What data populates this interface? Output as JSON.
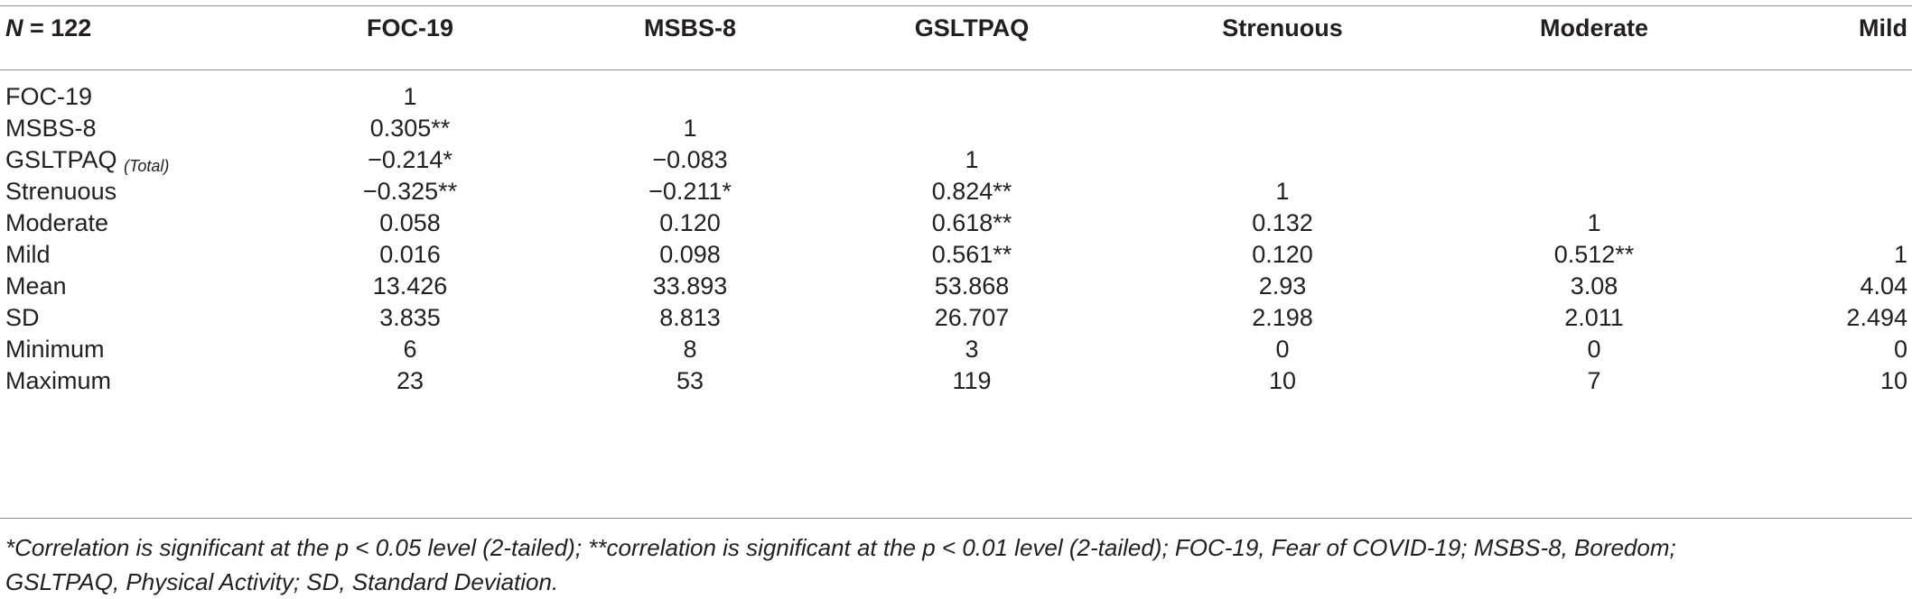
{
  "table": {
    "header": {
      "n_label": "N",
      "n_value": " = 122",
      "columns": [
        "FOC-19",
        "MSBS-8",
        "GSLTPAQ",
        "Strenuous",
        "Moderate",
        "Mild"
      ]
    },
    "rows": [
      {
        "label": "FOC-19",
        "label_sub": "",
        "cells": [
          "1",
          "",
          "",
          "",
          "",
          ""
        ]
      },
      {
        "label": "MSBS-8",
        "label_sub": "",
        "cells": [
          "0.305**",
          "1",
          "",
          "",
          "",
          ""
        ]
      },
      {
        "label": "GSLTPAQ",
        "label_sub": "(Total)",
        "cells": [
          "−0.214*",
          "−0.083",
          "1",
          "",
          "",
          ""
        ]
      },
      {
        "label": "Strenuous",
        "label_sub": "",
        "cells": [
          "−0.325**",
          "−0.211*",
          "0.824**",
          "1",
          "",
          ""
        ]
      },
      {
        "label": "Moderate",
        "label_sub": "",
        "cells": [
          "0.058",
          "0.120",
          "0.618**",
          "0.132",
          "1",
          ""
        ]
      },
      {
        "label": "Mild",
        "label_sub": "",
        "cells": [
          "0.016",
          "0.098",
          "0.561**",
          "0.120",
          "0.512**",
          "1"
        ]
      },
      {
        "label": "Mean",
        "label_sub": "",
        "cells": [
          "13.426",
          "33.893",
          "53.868",
          "2.93",
          "3.08",
          "4.04"
        ]
      },
      {
        "label": "SD",
        "label_sub": "",
        "cells": [
          "3.835",
          "8.813",
          "26.707",
          "2.198",
          "2.011",
          "2.494"
        ]
      },
      {
        "label": "Minimum",
        "label_sub": "",
        "cells": [
          "6",
          "8",
          "3",
          "0",
          "0",
          "0"
        ]
      },
      {
        "label": "Maximum",
        "label_sub": "",
        "cells": [
          "23",
          "53",
          "119",
          "10",
          "7",
          "10"
        ]
      }
    ],
    "footnote_line1": "*Correlation is significant at the p < 0.05 level (2-tailed); **correlation is significant at the p < 0.01 level (2-tailed); FOC-19, Fear of COVID-19; MSBS-8, Boredom;",
    "footnote_line2": "GSLTPAQ, Physical Activity; SD, Standard Deviation."
  }
}
